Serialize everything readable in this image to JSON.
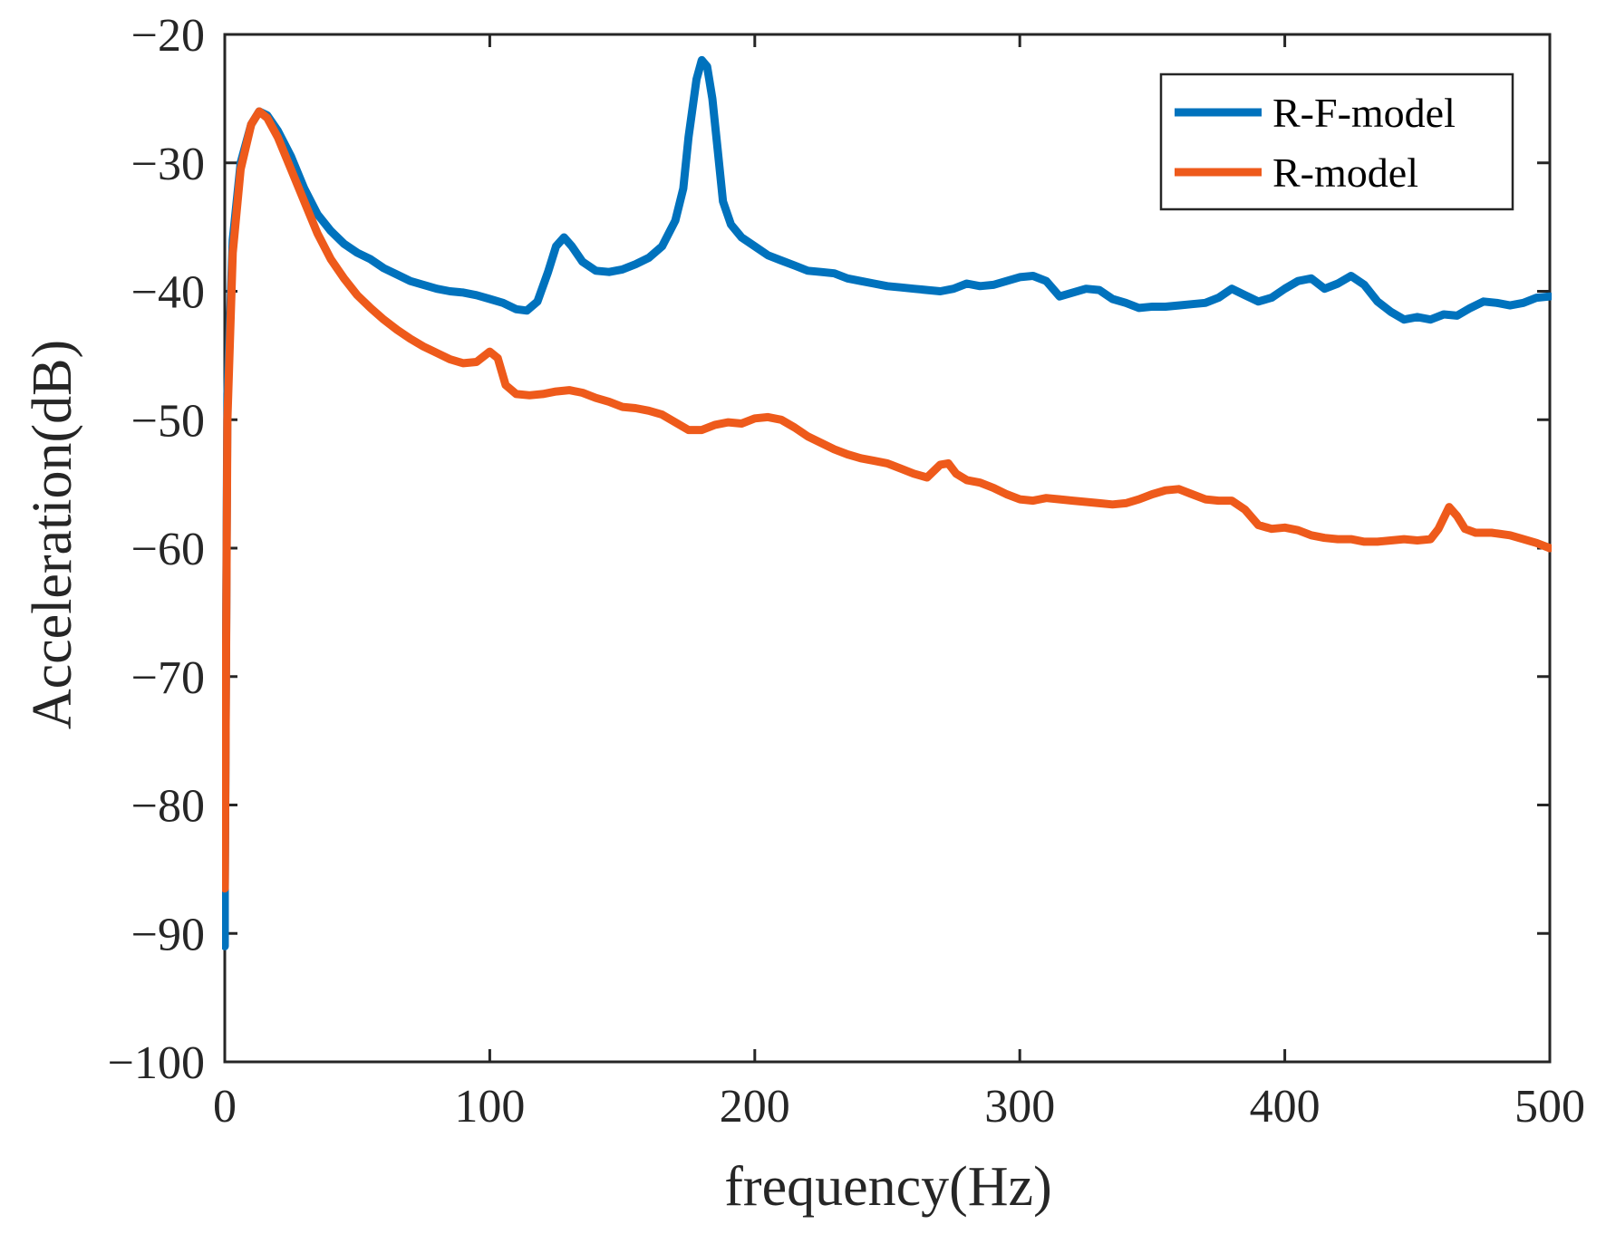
{
  "chart_data": {
    "type": "line",
    "title": "",
    "xlabel": "frequency(Hz)",
    "ylabel": "Acceleration(dB)",
    "xlim": [
      0,
      500
    ],
    "ylim": [
      -100,
      -20
    ],
    "xticks": [
      0,
      100,
      200,
      300,
      400,
      500
    ],
    "yticks": [
      -20,
      -30,
      -40,
      -50,
      -60,
      -70,
      -80,
      -90,
      -100
    ],
    "xtick_labels": [
      "0",
      "100",
      "200",
      "300",
      "400",
      "500"
    ],
    "ytick_labels": [
      "−20",
      "−30",
      "−40",
      "−50",
      "−60",
      "−70",
      "−80",
      "−90",
      "−100"
    ],
    "grid": false,
    "legend_position": "top-right",
    "series": [
      {
        "name": "R-F-model",
        "color": "#0072BD",
        "points": [
          [
            0,
            -91
          ],
          [
            0,
            -87
          ],
          [
            1,
            -48
          ],
          [
            3,
            -36
          ],
          [
            6,
            -30
          ],
          [
            10,
            -27
          ],
          [
            13,
            -26
          ],
          [
            16,
            -26.3
          ],
          [
            20,
            -27.5
          ],
          [
            25,
            -29.5
          ],
          [
            30,
            -32
          ],
          [
            35,
            -34
          ],
          [
            40,
            -35.3
          ],
          [
            45,
            -36.3
          ],
          [
            50,
            -37
          ],
          [
            55,
            -37.5
          ],
          [
            60,
            -38.2
          ],
          [
            65,
            -38.7
          ],
          [
            70,
            -39.2
          ],
          [
            75,
            -39.5
          ],
          [
            80,
            -39.8
          ],
          [
            85,
            -40
          ],
          [
            90,
            -40.1
          ],
          [
            95,
            -40.3
          ],
          [
            100,
            -40.6
          ],
          [
            105,
            -40.9
          ],
          [
            110,
            -41.4
          ],
          [
            114,
            -41.5
          ],
          [
            118,
            -40.8
          ],
          [
            122,
            -38.5
          ],
          [
            125,
            -36.5
          ],
          [
            128,
            -35.8
          ],
          [
            131,
            -36.5
          ],
          [
            135,
            -37.7
          ],
          [
            140,
            -38.4
          ],
          [
            145,
            -38.5
          ],
          [
            150,
            -38.3
          ],
          [
            155,
            -37.9
          ],
          [
            160,
            -37.4
          ],
          [
            165,
            -36.5
          ],
          [
            170,
            -34.5
          ],
          [
            173,
            -32
          ],
          [
            175,
            -28
          ],
          [
            178,
            -23.5
          ],
          [
            180,
            -22
          ],
          [
            182,
            -22.5
          ],
          [
            184,
            -25
          ],
          [
            186,
            -29
          ],
          [
            188,
            -33
          ],
          [
            191,
            -34.8
          ],
          [
            195,
            -35.8
          ],
          [
            200,
            -36.5
          ],
          [
            205,
            -37.2
          ],
          [
            210,
            -37.6
          ],
          [
            215,
            -38
          ],
          [
            220,
            -38.4
          ],
          [
            225,
            -38.5
          ],
          [
            230,
            -38.6
          ],
          [
            235,
            -39
          ],
          [
            240,
            -39.2
          ],
          [
            245,
            -39.4
          ],
          [
            250,
            -39.6
          ],
          [
            255,
            -39.7
          ],
          [
            260,
            -39.8
          ],
          [
            265,
            -39.9
          ],
          [
            270,
            -40
          ],
          [
            275,
            -39.8
          ],
          [
            280,
            -39.4
          ],
          [
            285,
            -39.6
          ],
          [
            290,
            -39.5
          ],
          [
            295,
            -39.2
          ],
          [
            300,
            -38.9
          ],
          [
            305,
            -38.8
          ],
          [
            310,
            -39.2
          ],
          [
            315,
            -40.4
          ],
          [
            320,
            -40.1
          ],
          [
            325,
            -39.8
          ],
          [
            330,
            -39.9
          ],
          [
            335,
            -40.6
          ],
          [
            340,
            -40.9
          ],
          [
            345,
            -41.3
          ],
          [
            350,
            -41.2
          ],
          [
            355,
            -41.2
          ],
          [
            360,
            -41.1
          ],
          [
            365,
            -41
          ],
          [
            370,
            -40.9
          ],
          [
            375,
            -40.5
          ],
          [
            380,
            -39.8
          ],
          [
            385,
            -40.3
          ],
          [
            390,
            -40.8
          ],
          [
            395,
            -40.5
          ],
          [
            400,
            -39.8
          ],
          [
            405,
            -39.2
          ],
          [
            410,
            -39
          ],
          [
            415,
            -39.8
          ],
          [
            420,
            -39.4
          ],
          [
            425,
            -38.8
          ],
          [
            430,
            -39.5
          ],
          [
            435,
            -40.8
          ],
          [
            440,
            -41.6
          ],
          [
            445,
            -42.2
          ],
          [
            450,
            -42
          ],
          [
            455,
            -42.2
          ],
          [
            460,
            -41.8
          ],
          [
            465,
            -41.9
          ],
          [
            470,
            -41.3
          ],
          [
            475,
            -40.8
          ],
          [
            480,
            -40.9
          ],
          [
            485,
            -41.1
          ],
          [
            490,
            -40.9
          ],
          [
            495,
            -40.5
          ],
          [
            500,
            -40.4
          ]
        ]
      },
      {
        "name": "R-model",
        "color": "#EE5A1B",
        "points": [
          [
            0,
            -86.5
          ],
          [
            1,
            -50
          ],
          [
            3,
            -37
          ],
          [
            6,
            -30.5
          ],
          [
            10,
            -27
          ],
          [
            13,
            -26
          ],
          [
            16,
            -26.5
          ],
          [
            20,
            -28
          ],
          [
            25,
            -30.5
          ],
          [
            30,
            -33
          ],
          [
            35,
            -35.5
          ],
          [
            40,
            -37.5
          ],
          [
            45,
            -39
          ],
          [
            50,
            -40.3
          ],
          [
            55,
            -41.3
          ],
          [
            60,
            -42.2
          ],
          [
            65,
            -43
          ],
          [
            70,
            -43.7
          ],
          [
            75,
            -44.3
          ],
          [
            80,
            -44.8
          ],
          [
            85,
            -45.3
          ],
          [
            90,
            -45.6
          ],
          [
            95,
            -45.5
          ],
          [
            100,
            -44.7
          ],
          [
            103,
            -45.2
          ],
          [
            106,
            -47.3
          ],
          [
            110,
            -48
          ],
          [
            115,
            -48.1
          ],
          [
            120,
            -48
          ],
          [
            125,
            -47.8
          ],
          [
            130,
            -47.7
          ],
          [
            135,
            -47.9
          ],
          [
            140,
            -48.3
          ],
          [
            145,
            -48.6
          ],
          [
            150,
            -49
          ],
          [
            155,
            -49.1
          ],
          [
            160,
            -49.3
          ],
          [
            165,
            -49.6
          ],
          [
            170,
            -50.2
          ],
          [
            175,
            -50.8
          ],
          [
            180,
            -50.8
          ],
          [
            185,
            -50.4
          ],
          [
            190,
            -50.2
          ],
          [
            195,
            -50.3
          ],
          [
            200,
            -49.9
          ],
          [
            205,
            -49.8
          ],
          [
            210,
            -50
          ],
          [
            215,
            -50.6
          ],
          [
            220,
            -51.3
          ],
          [
            225,
            -51.8
          ],
          [
            230,
            -52.3
          ],
          [
            235,
            -52.7
          ],
          [
            240,
            -53
          ],
          [
            245,
            -53.2
          ],
          [
            250,
            -53.4
          ],
          [
            255,
            -53.8
          ],
          [
            260,
            -54.2
          ],
          [
            265,
            -54.5
          ],
          [
            270,
            -53.5
          ],
          [
            273,
            -53.4
          ],
          [
            276,
            -54.2
          ],
          [
            280,
            -54.7
          ],
          [
            285,
            -54.9
          ],
          [
            290,
            -55.3
          ],
          [
            295,
            -55.8
          ],
          [
            300,
            -56.2
          ],
          [
            305,
            -56.3
          ],
          [
            310,
            -56.1
          ],
          [
            315,
            -56.2
          ],
          [
            320,
            -56.3
          ],
          [
            325,
            -56.4
          ],
          [
            330,
            -56.5
          ],
          [
            335,
            -56.6
          ],
          [
            340,
            -56.5
          ],
          [
            345,
            -56.2
          ],
          [
            350,
            -55.8
          ],
          [
            355,
            -55.5
          ],
          [
            360,
            -55.4
          ],
          [
            365,
            -55.8
          ],
          [
            370,
            -56.2
          ],
          [
            375,
            -56.3
          ],
          [
            380,
            -56.3
          ],
          [
            385,
            -57
          ],
          [
            390,
            -58.2
          ],
          [
            395,
            -58.5
          ],
          [
            400,
            -58.4
          ],
          [
            405,
            -58.6
          ],
          [
            410,
            -59
          ],
          [
            415,
            -59.2
          ],
          [
            420,
            -59.3
          ],
          [
            425,
            -59.3
          ],
          [
            430,
            -59.5
          ],
          [
            435,
            -59.5
          ],
          [
            440,
            -59.4
          ],
          [
            445,
            -59.3
          ],
          [
            450,
            -59.4
          ],
          [
            455,
            -59.3
          ],
          [
            458,
            -58.5
          ],
          [
            462,
            -56.8
          ],
          [
            465,
            -57.5
          ],
          [
            468,
            -58.5
          ],
          [
            472,
            -58.8
          ],
          [
            478,
            -58.8
          ],
          [
            485,
            -59
          ],
          [
            490,
            -59.3
          ],
          [
            495,
            -59.6
          ],
          [
            500,
            -60
          ]
        ]
      }
    ]
  }
}
